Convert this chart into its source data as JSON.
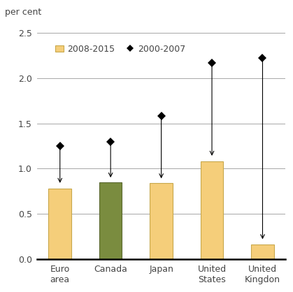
{
  "categories": [
    "Euro\narea",
    "Canada",
    "Japan",
    "United\nStates",
    "United\nKingdon"
  ],
  "bar_values": [
    0.78,
    0.85,
    0.84,
    1.08,
    0.16
  ],
  "bar_colors": [
    "#F5CE7A",
    "#7A8C3F",
    "#F5CE7A",
    "#F5CE7A",
    "#F5CE7A"
  ],
  "bar_edge_colors": [
    "#C8A84B",
    "#5A6830",
    "#C8A84B",
    "#C8A84B",
    "#C8A84B"
  ],
  "diamond_values": [
    1.25,
    1.3,
    1.58,
    2.17,
    2.22
  ],
  "arrow_end_values": [
    0.82,
    0.88,
    0.87,
    1.12,
    0.2
  ],
  "ylabel": "per cent",
  "ylim": [
    0.0,
    2.6
  ],
  "yticks": [
    0.0,
    0.5,
    1.0,
    1.5,
    2.0,
    2.5
  ],
  "ytick_labels": [
    "0.0",
    "0.5",
    "1.0",
    "1.5",
    "2.0",
    "2.5"
  ],
  "legend_label_bar": "2008-2015",
  "legend_label_diamond": "2000-2007",
  "bar_width": 0.45,
  "figure_bg": "#FFFFFF",
  "axes_bg": "#FFFFFF",
  "grid_color": "#999999",
  "text_color": "#444444",
  "tick_fontsize": 9,
  "legend_fontsize": 9,
  "ylabel_fontsize": 9
}
